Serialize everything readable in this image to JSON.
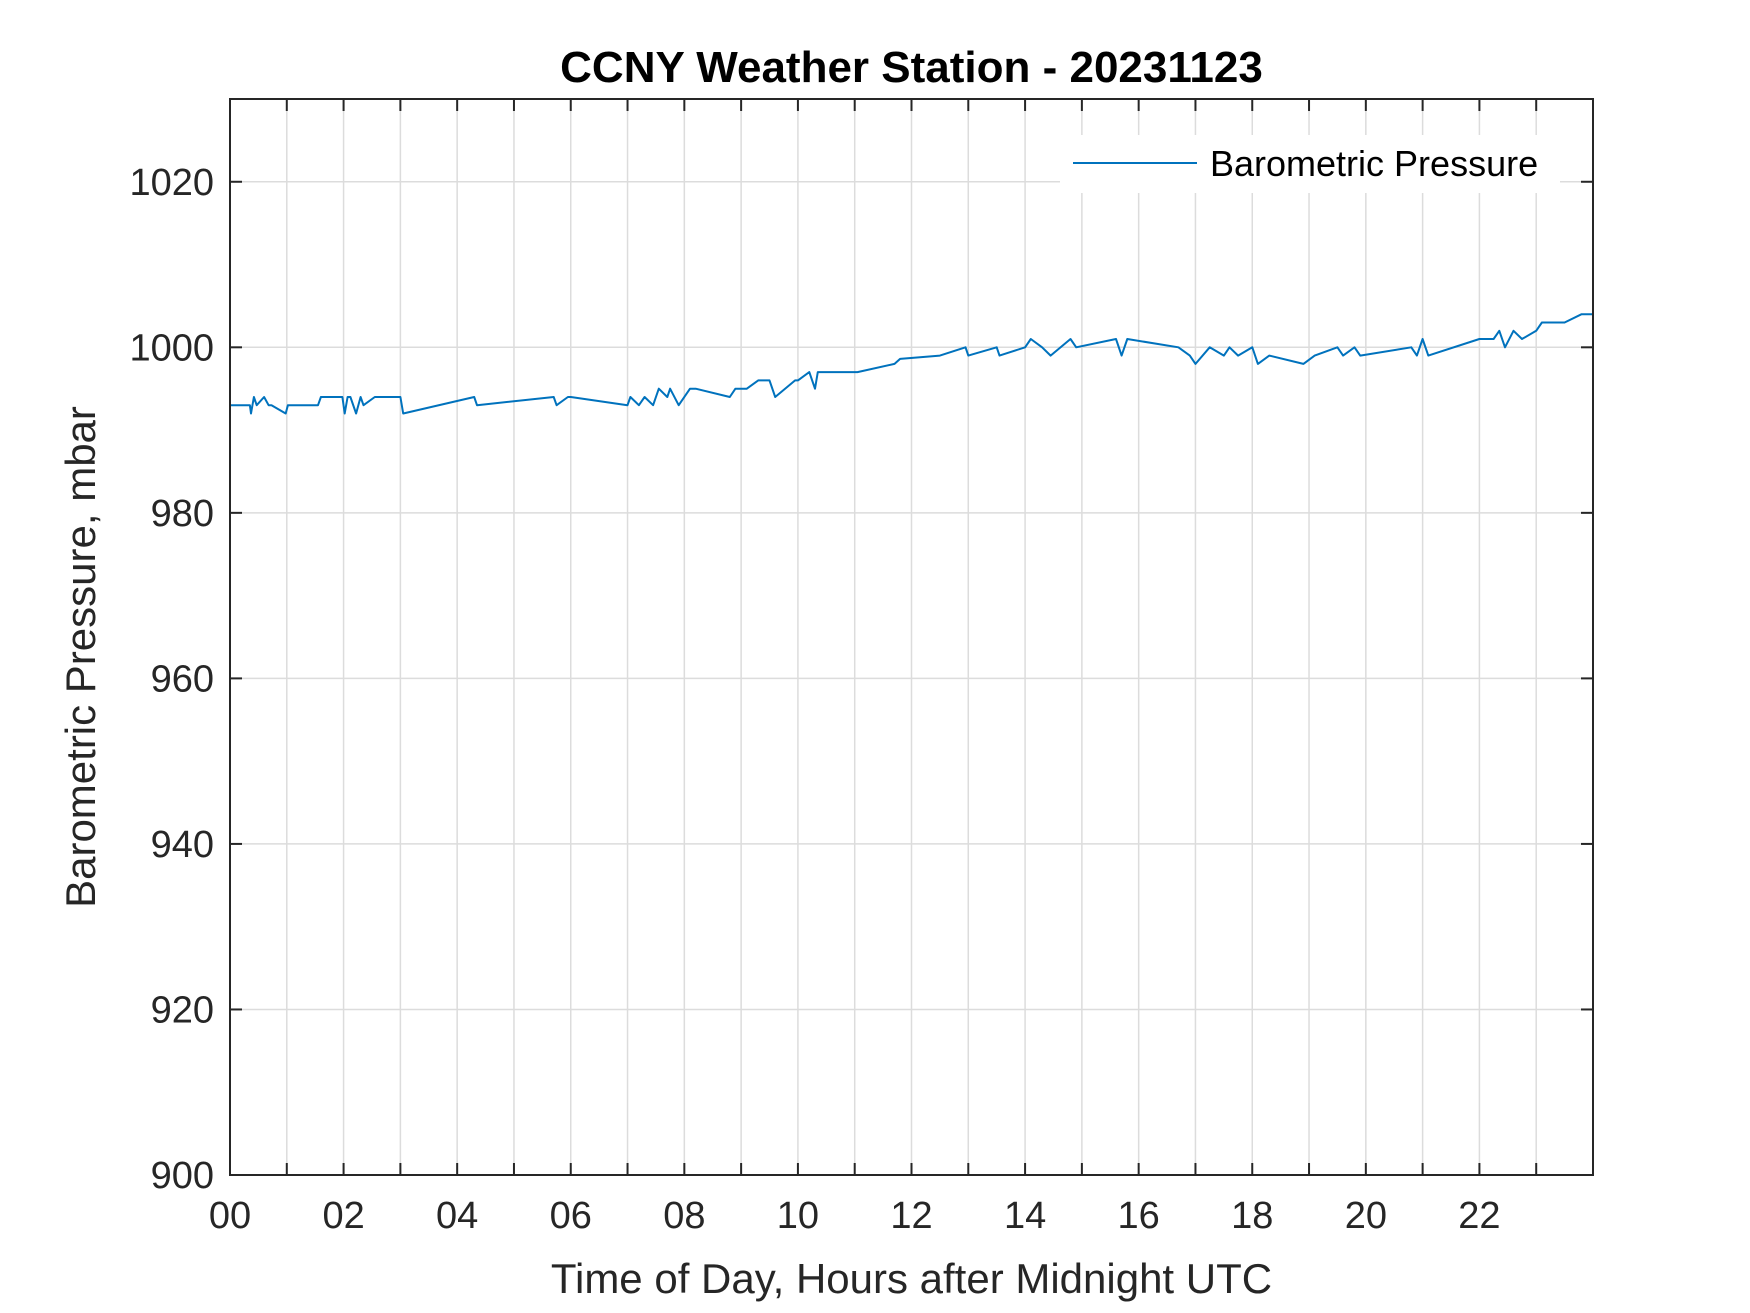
{
  "chart_data": {
    "type": "line",
    "title": "CCNY Weather Station - 20231123",
    "xlabel": "Time of Day, Hours after Midnight UTC",
    "ylabel": "Barometric Pressure, mbar",
    "xlim": [
      0,
      24
    ],
    "ylim": [
      900,
      1030
    ],
    "xticks": [
      0,
      2,
      4,
      6,
      8,
      10,
      12,
      14,
      16,
      18,
      20,
      22
    ],
    "xtick_labels": [
      "00",
      "02",
      "04",
      "06",
      "08",
      "10",
      "12",
      "14",
      "16",
      "18",
      "20",
      "22"
    ],
    "xgrid_step": 1,
    "yticks": [
      900,
      920,
      940,
      960,
      980,
      1000,
      1020
    ],
    "ytick_labels": [
      "900",
      "920",
      "940",
      "960",
      "980",
      "1000",
      "1020"
    ],
    "grid": true,
    "legend_position": "top-right",
    "series": [
      {
        "name": "Barometric Pressure",
        "color": "#0072bd",
        "x": [
          0,
          0.35,
          0.37,
          0.42,
          0.47,
          0.6,
          0.68,
          0.73,
          0.98,
          1.02,
          1.55,
          1.6,
          1.98,
          2.02,
          2.07,
          2.12,
          2.22,
          2.3,
          2.35,
          2.55,
          3.0,
          3.05,
          4.3,
          4.35,
          5.7,
          5.75,
          5.95,
          6.0,
          7.0,
          7.05,
          7.2,
          7.3,
          7.45,
          7.55,
          7.7,
          7.75,
          7.9,
          8.1,
          8.2,
          8.8,
          8.9,
          8.95,
          9.1,
          9.3,
          9.5,
          9.6,
          9.95,
          10.0,
          10.2,
          10.3,
          10.35,
          11.0,
          11.05,
          11.7,
          11.8,
          12.5,
          12.95,
          13.0,
          13.5,
          13.55,
          14.0,
          14.1,
          14.3,
          14.45,
          14.8,
          14.9,
          15.6,
          15.7,
          15.8,
          16.7,
          16.9,
          17.0,
          17.25,
          17.5,
          17.6,
          17.75,
          18.0,
          18.1,
          18.3,
          18.9,
          19.1,
          19.5,
          19.6,
          19.8,
          19.9,
          20.8,
          20.9,
          21.0,
          21.1,
          22.0,
          22.25,
          22.35,
          22.45,
          22.6,
          22.75,
          23.0,
          23.1,
          23.5,
          23.8,
          24.0
        ],
        "y": [
          993,
          993,
          992,
          994,
          993,
          994,
          993,
          993,
          992,
          993,
          993,
          994,
          994,
          992,
          994,
          994,
          992,
          994,
          993,
          994,
          994,
          992,
          994,
          993,
          994,
          993,
          994,
          994,
          993,
          994,
          993,
          994,
          993,
          995,
          994,
          995,
          993,
          995,
          995,
          994,
          995,
          995,
          995,
          996,
          996,
          994,
          996,
          996,
          997,
          995,
          997,
          997,
          997,
          998,
          998.6,
          999,
          1000,
          999,
          1000,
          999,
          1000,
          1001,
          1000,
          999,
          1001,
          1000,
          1001,
          999,
          1001,
          1000,
          999,
          998,
          1000,
          999,
          1000,
          999,
          1000,
          998,
          999,
          998,
          999,
          1000,
          999,
          1000,
          999,
          1000,
          999,
          1001,
          999,
          1001,
          1001,
          1002,
          1000,
          1002,
          1001,
          1002,
          1003,
          1003,
          1004,
          1004
        ]
      }
    ]
  }
}
